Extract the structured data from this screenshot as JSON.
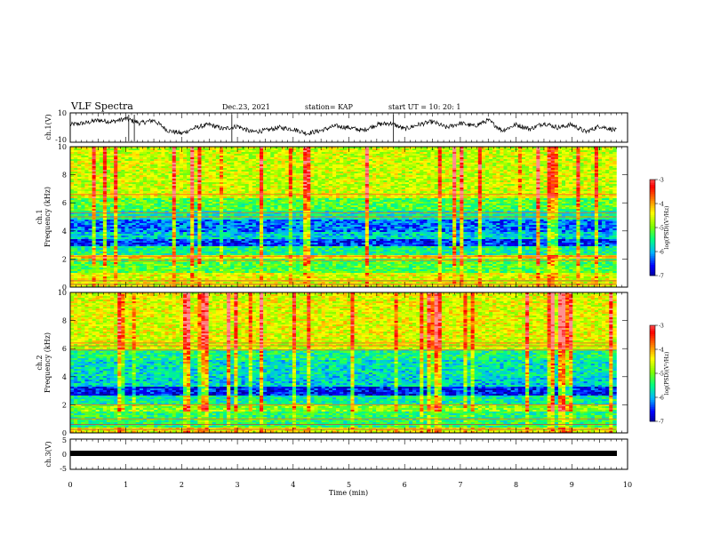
{
  "header": {
    "title": "VLF Spectra",
    "date": "Dec.23, 2021",
    "station": "station= KAP",
    "start": "start  UT  =   10: 20: 1"
  },
  "chart_data": [
    {
      "type": "line",
      "panel": "ch1-waveform",
      "ylabel": "ch.1(V)",
      "xlim": [
        0,
        10
      ],
      "ylim": [
        -10,
        10
      ],
      "yticks": [
        "10",
        "-10"
      ],
      "series": [
        {
          "x": [
            0,
            0.25,
            0.5,
            0.75,
            1,
            1.25,
            1.5,
            1.75,
            2,
            2.25,
            2.5,
            2.75,
            3,
            3.25,
            3.5,
            3.75,
            4,
            4.25,
            4.5,
            4.75,
            5,
            5.25,
            5.5,
            5.75,
            6,
            6.25,
            6.5,
            6.75,
            7,
            7.25,
            7.5,
            7.75,
            8,
            8.25,
            8.5,
            8.75,
            9,
            9.25,
            9.5,
            9.8
          ],
          "y": [
            2,
            3,
            5,
            4,
            6,
            3,
            5,
            -2,
            -4,
            0,
            2,
            -1,
            1,
            -3,
            -2,
            0,
            -1,
            -4,
            -2,
            1,
            0,
            -2,
            2,
            3,
            -1,
            2,
            4,
            0,
            3,
            1,
            5,
            -2,
            2,
            -1,
            3,
            0,
            2,
            -3,
            1,
            -2
          ]
        }
      ]
    },
    {
      "type": "heatmap",
      "panel": "ch1-spectrogram",
      "ylabel_line1": "ch.1",
      "ylabel_line2": "Frequency  (kHz)",
      "xlim": [
        0,
        10
      ],
      "ylim": [
        0,
        10
      ],
      "yticks": [
        "0",
        "2",
        "4",
        "6",
        "8",
        "10"
      ],
      "colorbar_label": "log(PSD)(V²/Hz)",
      "colorbar_range": [
        -7,
        -3
      ],
      "colorbar_ticks": [
        "-3",
        "-4",
        "-5",
        "-6",
        "-7"
      ],
      "bands_khz": [
        {
          "from": 0,
          "to": 1.0,
          "level": -4.6
        },
        {
          "from": 1.0,
          "to": 2.0,
          "level": -5.2
        },
        {
          "from": 2.0,
          "to": 2.3,
          "level": -4.4
        },
        {
          "from": 2.3,
          "to": 2.9,
          "level": -5.5
        },
        {
          "from": 2.9,
          "to": 3.4,
          "level": -6.4
        },
        {
          "from": 3.4,
          "to": 3.9,
          "level": -5.8
        },
        {
          "from": 3.9,
          "to": 4.8,
          "level": -6.2
        },
        {
          "from": 4.8,
          "to": 5.4,
          "level": -5.6
        },
        {
          "from": 5.4,
          "to": 6.3,
          "level": -5.2
        },
        {
          "from": 6.3,
          "to": 6.7,
          "level": -4.6
        },
        {
          "from": 6.7,
          "to": 10.0,
          "level": -4.7
        }
      ]
    },
    {
      "type": "heatmap",
      "panel": "ch2-spectrogram",
      "ylabel_line1": "ch.2",
      "ylabel_line2": "Frequency  (kHz)",
      "xlim": [
        0,
        10
      ],
      "ylim": [
        0,
        10
      ],
      "yticks": [
        "0",
        "2",
        "4",
        "6",
        "8",
        "10"
      ],
      "colorbar_label": "log(PSD)(V²/Hz)",
      "colorbar_range": [
        -7,
        -3
      ],
      "colorbar_ticks": [
        "-3",
        "-4",
        "-5",
        "-6",
        "-7"
      ],
      "bands_khz": [
        {
          "from": 0,
          "to": 0.4,
          "level": -4.5
        },
        {
          "from": 0.4,
          "to": 1.5,
          "level": -5.4
        },
        {
          "from": 1.5,
          "to": 2.0,
          "level": -5.0
        },
        {
          "from": 2.0,
          "to": 2.6,
          "level": -5.6
        },
        {
          "from": 2.6,
          "to": 3.3,
          "level": -6.5
        },
        {
          "from": 3.3,
          "to": 4.0,
          "level": -5.8
        },
        {
          "from": 4.0,
          "to": 5.2,
          "level": -5.7
        },
        {
          "from": 5.2,
          "to": 6.0,
          "level": -5.5
        },
        {
          "from": 6.0,
          "to": 6.4,
          "level": -4.7
        },
        {
          "from": 6.4,
          "to": 10.0,
          "level": -4.6
        }
      ]
    },
    {
      "type": "line",
      "panel": "ch3-waveform",
      "ylabel": "ch.3(V)",
      "xlabel": "Time  (min)",
      "xlim": [
        0,
        10
      ],
      "ylim": [
        -5,
        5
      ],
      "yticks": [
        "5",
        "0",
        "-5"
      ],
      "xticks": [
        "0",
        "1",
        "2",
        "3",
        "4",
        "5",
        "6",
        "7",
        "8",
        "9",
        "10"
      ],
      "series": [
        {
          "x": [
            0,
            9.8
          ],
          "y": [
            0,
            0
          ]
        }
      ]
    }
  ],
  "colors": {
    "colormap": [
      "#000080",
      "#0000ff",
      "#00b4ff",
      "#00ff80",
      "#80ff00",
      "#ffff00",
      "#ff8000",
      "#ff0000",
      "#ff9090",
      "#ffffff"
    ]
  }
}
